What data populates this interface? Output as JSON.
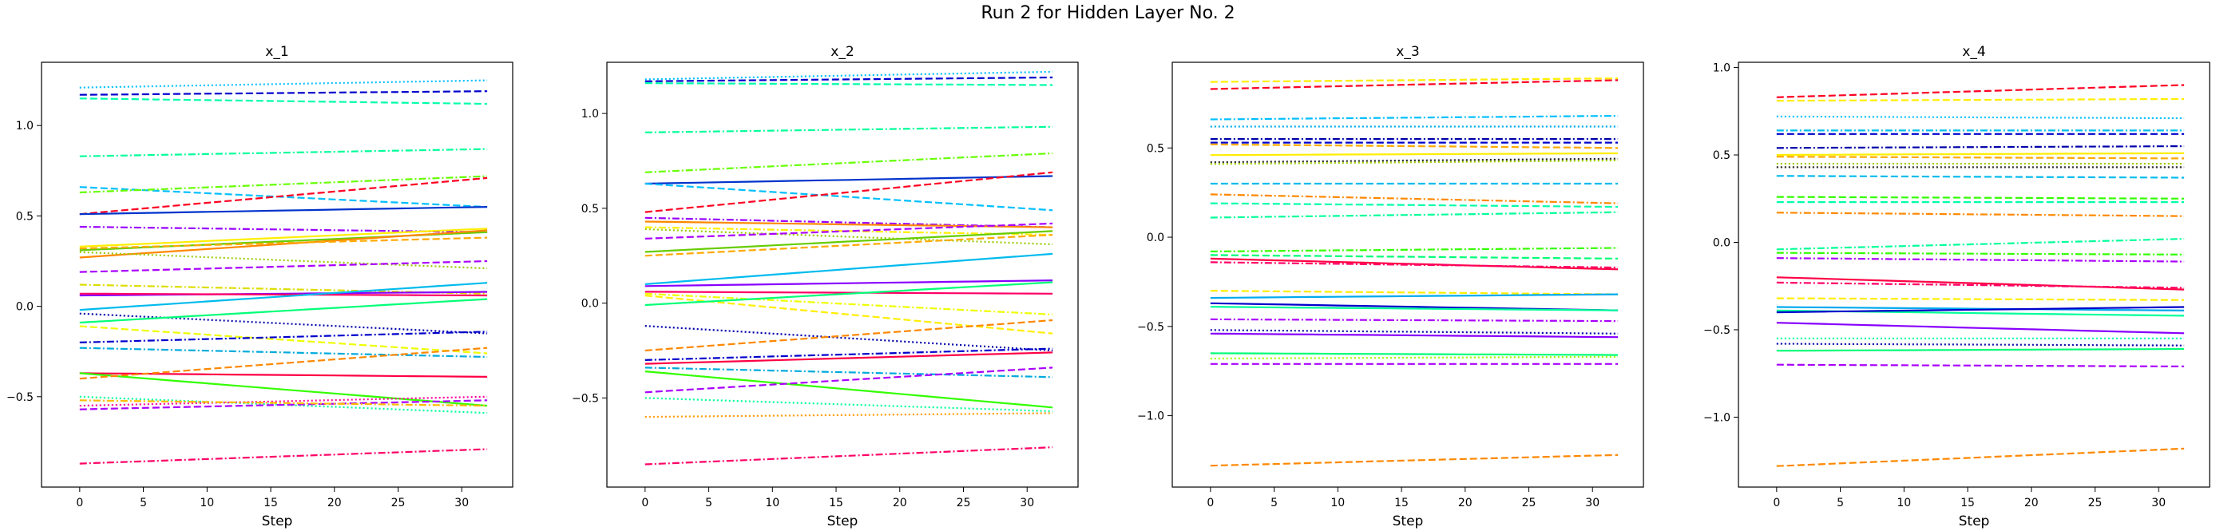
{
  "figure": {
    "title": "Run 2 for Hidden Layer No. 2"
  },
  "chart_data": [
    {
      "type": "line",
      "title": "x_1",
      "xlabel": "Step",
      "xlim": [
        -3,
        34
      ],
      "ylim": [
        -1.0,
        1.35
      ],
      "xticks": [
        0,
        5,
        10,
        15,
        20,
        25,
        30
      ],
      "yticks": [
        -0.5,
        0.0,
        0.5,
        1.0
      ],
      "ytick_labels": [
        "−0.5",
        "0.0",
        "0.5",
        "1.0"
      ],
      "x_range": [
        0,
        32
      ],
      "lines": [
        {
          "start": 1.21,
          "end": 1.25,
          "color": "#00bfff",
          "dash": "dot"
        },
        {
          "start": 1.17,
          "end": 1.19,
          "color": "#0000cd",
          "dash": "dash"
        },
        {
          "start": 1.15,
          "end": 1.12,
          "color": "#00ffaa",
          "dash": "dash"
        },
        {
          "start": 0.83,
          "end": 0.87,
          "color": "#00ff99",
          "dash": "dashdot"
        },
        {
          "start": 0.66,
          "end": 0.55,
          "color": "#00bfff",
          "dash": "dash"
        },
        {
          "start": 0.63,
          "end": 0.72,
          "color": "#66ff00",
          "dash": "dashdot"
        },
        {
          "start": 0.51,
          "end": 0.71,
          "color": "#ff0022",
          "dash": "dash"
        },
        {
          "start": 0.51,
          "end": 0.55,
          "color": "#0033cc",
          "dash": "solid"
        },
        {
          "start": 0.44,
          "end": 0.41,
          "color": "#9900ff",
          "dash": "dashdot"
        },
        {
          "start": 0.33,
          "end": 0.43,
          "color": "#ffee00",
          "dash": "solid"
        },
        {
          "start": 0.31,
          "end": 0.41,
          "color": "#66cc00",
          "dash": "solid"
        },
        {
          "start": 0.27,
          "end": 0.42,
          "color": "#ff8800",
          "dash": "solid"
        },
        {
          "start": 0.32,
          "end": 0.38,
          "color": "#ffaa00",
          "dash": "dash"
        },
        {
          "start": 0.3,
          "end": 0.21,
          "color": "#99cc00",
          "dash": "dot"
        },
        {
          "start": 0.19,
          "end": 0.25,
          "color": "#aa00ff",
          "dash": "dash"
        },
        {
          "start": 0.12,
          "end": 0.07,
          "color": "#dddd00",
          "dash": "dashdot"
        },
        {
          "start": 0.06,
          "end": 0.08,
          "color": "#8800ff",
          "dash": "solid"
        },
        {
          "start": 0.07,
          "end": 0.06,
          "color": "#ff0066",
          "dash": "solid"
        },
        {
          "start": -0.02,
          "end": 0.13,
          "color": "#00bbee",
          "dash": "solid"
        },
        {
          "start": -0.04,
          "end": -0.15,
          "color": "#0000aa",
          "dash": "dot"
        },
        {
          "start": -0.09,
          "end": 0.04,
          "color": "#00ff77",
          "dash": "solid"
        },
        {
          "start": -0.11,
          "end": -0.26,
          "color": "#eeff00",
          "dash": "dash"
        },
        {
          "start": -0.2,
          "end": -0.14,
          "color": "#0000cc",
          "dash": "dashdot"
        },
        {
          "start": -0.23,
          "end": -0.28,
          "color": "#00aadd",
          "dash": "dashdot"
        },
        {
          "start": -0.37,
          "end": -0.39,
          "color": "#ff0044",
          "dash": "solid"
        },
        {
          "start": -0.37,
          "end": -0.55,
          "color": "#33ff00",
          "dash": "solid"
        },
        {
          "start": -0.4,
          "end": -0.23,
          "color": "#ff8800",
          "dash": "dash"
        },
        {
          "start": -0.5,
          "end": -0.59,
          "color": "#00ff99",
          "dash": "dot"
        },
        {
          "start": -0.55,
          "end": -0.5,
          "color": "#ff0099",
          "dash": "dot"
        },
        {
          "start": -0.57,
          "end": -0.52,
          "color": "#aa00ff",
          "dash": "dash"
        },
        {
          "start": -0.52,
          "end": -0.55,
          "color": "#ffbb00",
          "dash": "dashdot"
        },
        {
          "start": -0.87,
          "end": -0.79,
          "color": "#ff0066",
          "dash": "dashdot"
        }
      ]
    },
    {
      "type": "line",
      "title": "x_2",
      "xlabel": "Step",
      "xlim": [
        -3,
        34
      ],
      "ylim": [
        -0.97,
        1.27
      ],
      "xticks": [
        0,
        5,
        10,
        15,
        20,
        25,
        30
      ],
      "yticks": [
        -0.5,
        0.0,
        0.5,
        1.0
      ],
      "ytick_labels": [
        "−0.5",
        "0.0",
        "0.5",
        "1.0"
      ],
      "x_range": [
        0,
        32
      ],
      "lines": [
        {
          "start": 1.18,
          "end": 1.22,
          "color": "#00bfff",
          "dash": "dot"
        },
        {
          "start": 1.17,
          "end": 1.19,
          "color": "#0000cd",
          "dash": "dash"
        },
        {
          "start": 1.16,
          "end": 1.15,
          "color": "#00ffaa",
          "dash": "dash"
        },
        {
          "start": 0.9,
          "end": 0.93,
          "color": "#00ff99",
          "dash": "dashdot"
        },
        {
          "start": 0.69,
          "end": 0.79,
          "color": "#66ff00",
          "dash": "dashdot"
        },
        {
          "start": 0.63,
          "end": 0.67,
          "color": "#0033cc",
          "dash": "solid"
        },
        {
          "start": 0.63,
          "end": 0.49,
          "color": "#00bfff",
          "dash": "dash"
        },
        {
          "start": 0.48,
          "end": 0.69,
          "color": "#ff0022",
          "dash": "dash"
        },
        {
          "start": 0.45,
          "end": 0.4,
          "color": "#9900ff",
          "dash": "dashdot"
        },
        {
          "start": 0.43,
          "end": 0.4,
          "color": "#ff8800",
          "dash": "solid"
        },
        {
          "start": 0.4,
          "end": 0.36,
          "color": "#ffee00",
          "dash": "dashdot"
        },
        {
          "start": 0.39,
          "end": 0.31,
          "color": "#99cc00",
          "dash": "dot"
        },
        {
          "start": 0.34,
          "end": 0.42,
          "color": "#aa00ff",
          "dash": "dash"
        },
        {
          "start": 0.27,
          "end": 0.38,
          "color": "#66cc00",
          "dash": "solid"
        },
        {
          "start": 0.25,
          "end": 0.36,
          "color": "#ffaa00",
          "dash": "dash"
        },
        {
          "start": 0.1,
          "end": 0.26,
          "color": "#00bbee",
          "dash": "solid"
        },
        {
          "start": 0.09,
          "end": 0.12,
          "color": "#8800ff",
          "dash": "solid"
        },
        {
          "start": 0.06,
          "end": 0.05,
          "color": "#ff0066",
          "dash": "solid"
        },
        {
          "start": 0.05,
          "end": -0.06,
          "color": "#eeff00",
          "dash": "dashdot"
        },
        {
          "start": 0.04,
          "end": -0.16,
          "color": "#ffee00",
          "dash": "dash"
        },
        {
          "start": -0.01,
          "end": 0.11,
          "color": "#00ff77",
          "dash": "solid"
        },
        {
          "start": -0.12,
          "end": -0.25,
          "color": "#0000aa",
          "dash": "dot"
        },
        {
          "start": -0.25,
          "end": -0.09,
          "color": "#ff8800",
          "dash": "dash"
        },
        {
          "start": -0.3,
          "end": -0.24,
          "color": "#0000cc",
          "dash": "dashdot"
        },
        {
          "start": -0.32,
          "end": -0.26,
          "color": "#ff0044",
          "dash": "solid"
        },
        {
          "start": -0.34,
          "end": -0.39,
          "color": "#00aadd",
          "dash": "dashdot"
        },
        {
          "start": -0.36,
          "end": -0.55,
          "color": "#33ff00",
          "dash": "solid"
        },
        {
          "start": -0.47,
          "end": -0.34,
          "color": "#aa00ff",
          "dash": "dash"
        },
        {
          "start": -0.5,
          "end": -0.57,
          "color": "#00ff99",
          "dash": "dot"
        },
        {
          "start": -0.6,
          "end": -0.58,
          "color": "#ff9900",
          "dash": "dot"
        },
        {
          "start": -0.85,
          "end": -0.76,
          "color": "#ff0066",
          "dash": "dashdot"
        }
      ]
    },
    {
      "type": "line",
      "title": "x_3",
      "xlabel": "Step",
      "xlim": [
        -3,
        34
      ],
      "ylim": [
        -1.4,
        0.98
      ],
      "xticks": [
        0,
        5,
        10,
        15,
        20,
        25,
        30
      ],
      "yticks": [
        -1.0,
        -0.5,
        0.0,
        0.5
      ],
      "ytick_labels": [
        "−1.0",
        "−0.5",
        "0.0",
        "0.5"
      ],
      "x_range": [
        0,
        32
      ],
      "lines": [
        {
          "start": 0.87,
          "end": 0.89,
          "color": "#ffee00",
          "dash": "dash"
        },
        {
          "start": 0.83,
          "end": 0.88,
          "color": "#ff0022",
          "dash": "dash"
        },
        {
          "start": 0.66,
          "end": 0.68,
          "color": "#00bfff",
          "dash": "dashdot"
        },
        {
          "start": 0.62,
          "end": 0.62,
          "color": "#00aaee",
          "dash": "dot"
        },
        {
          "start": 0.55,
          "end": 0.55,
          "color": "#0000aa",
          "dash": "dashdot"
        },
        {
          "start": 0.53,
          "end": 0.53,
          "color": "#0000cd",
          "dash": "dash"
        },
        {
          "start": 0.52,
          "end": 0.5,
          "color": "#ffaa00",
          "dash": "dash"
        },
        {
          "start": 0.46,
          "end": 0.47,
          "color": "#ffee00",
          "dash": "solid"
        },
        {
          "start": 0.42,
          "end": 0.44,
          "color": "#222222",
          "dash": "dot"
        },
        {
          "start": 0.41,
          "end": 0.43,
          "color": "#99cc00",
          "dash": "dot"
        },
        {
          "start": 0.3,
          "end": 0.3,
          "color": "#00bbee",
          "dash": "dash"
        },
        {
          "start": 0.24,
          "end": 0.19,
          "color": "#ff8800",
          "dash": "dashdot"
        },
        {
          "start": 0.19,
          "end": 0.17,
          "color": "#00ffaa",
          "dash": "dash"
        },
        {
          "start": 0.11,
          "end": 0.14,
          "color": "#00ff99",
          "dash": "dashdot"
        },
        {
          "start": -0.08,
          "end": -0.06,
          "color": "#33ff00",
          "dash": "dashdot"
        },
        {
          "start": -0.1,
          "end": -0.12,
          "color": "#00ff77",
          "dash": "dash"
        },
        {
          "start": -0.12,
          "end": -0.18,
          "color": "#ff0044",
          "dash": "solid"
        },
        {
          "start": -0.14,
          "end": -0.17,
          "color": "#ff0066",
          "dash": "dashdot"
        },
        {
          "start": -0.3,
          "end": -0.32,
          "color": "#ffee00",
          "dash": "dash"
        },
        {
          "start": -0.34,
          "end": -0.32,
          "color": "#00aaee",
          "dash": "solid"
        },
        {
          "start": -0.37,
          "end": -0.41,
          "color": "#0000cc",
          "dash": "solid"
        },
        {
          "start": -0.39,
          "end": -0.41,
          "color": "#00ff99",
          "dash": "solid"
        },
        {
          "start": -0.46,
          "end": -0.47,
          "color": "#aa00ff",
          "dash": "dashdot"
        },
        {
          "start": -0.52,
          "end": -0.54,
          "color": "#0000aa",
          "dash": "dot"
        },
        {
          "start": -0.54,
          "end": -0.56,
          "color": "#8800ff",
          "dash": "solid"
        },
        {
          "start": -0.65,
          "end": -0.66,
          "color": "#00ff77",
          "dash": "solid"
        },
        {
          "start": -0.68,
          "end": -0.67,
          "color": "#99ff00",
          "dash": "dot"
        },
        {
          "start": -0.71,
          "end": -0.71,
          "color": "#aa00ff",
          "dash": "dash"
        },
        {
          "start": -1.28,
          "end": -1.22,
          "color": "#ff8800",
          "dash": "dash"
        }
      ]
    },
    {
      "type": "line",
      "title": "x_4",
      "xlabel": "Step",
      "xlim": [
        -3,
        34
      ],
      "ylim": [
        -1.4,
        1.03
      ],
      "xticks": [
        0,
        5,
        10,
        15,
        20,
        25,
        30
      ],
      "yticks": [
        -1.0,
        -0.5,
        0.0,
        0.5,
        1.0
      ],
      "ytick_labels": [
        "−1.0",
        "−0.5",
        "0.0",
        "0.5",
        "1.0"
      ],
      "x_range": [
        0,
        32
      ],
      "lines": [
        {
          "start": 0.83,
          "end": 0.9,
          "color": "#ff0022",
          "dash": "dash"
        },
        {
          "start": 0.81,
          "end": 0.82,
          "color": "#ffee00",
          "dash": "dash"
        },
        {
          "start": 0.72,
          "end": 0.71,
          "color": "#00bfff",
          "dash": "dot"
        },
        {
          "start": 0.64,
          "end": 0.64,
          "color": "#00bbee",
          "dash": "dashdot"
        },
        {
          "start": 0.62,
          "end": 0.62,
          "color": "#0000cd",
          "dash": "dash"
        },
        {
          "start": 0.54,
          "end": 0.55,
          "color": "#0000aa",
          "dash": "dashdot"
        },
        {
          "start": 0.5,
          "end": 0.51,
          "color": "#ffee00",
          "dash": "solid"
        },
        {
          "start": 0.49,
          "end": 0.48,
          "color": "#ffaa00",
          "dash": "dash"
        },
        {
          "start": 0.45,
          "end": 0.45,
          "color": "#99cc00",
          "dash": "dot"
        },
        {
          "start": 0.43,
          "end": 0.43,
          "color": "#222222",
          "dash": "dot"
        },
        {
          "start": 0.38,
          "end": 0.37,
          "color": "#00bbee",
          "dash": "dash"
        },
        {
          "start": 0.26,
          "end": 0.25,
          "color": "#33ff00",
          "dash": "dash"
        },
        {
          "start": 0.23,
          "end": 0.23,
          "color": "#00ffaa",
          "dash": "dash"
        },
        {
          "start": 0.17,
          "end": 0.15,
          "color": "#ff8800",
          "dash": "dashdot"
        },
        {
          "start": -0.04,
          "end": 0.02,
          "color": "#00ff99",
          "dash": "dashdot"
        },
        {
          "start": -0.06,
          "end": -0.07,
          "color": "#33ff00",
          "dash": "dashdot"
        },
        {
          "start": -0.09,
          "end": -0.11,
          "color": "#aa00ff",
          "dash": "dashdot"
        },
        {
          "start": -0.2,
          "end": -0.27,
          "color": "#ff0044",
          "dash": "solid"
        },
        {
          "start": -0.23,
          "end": -0.26,
          "color": "#ff0066",
          "dash": "dashdot"
        },
        {
          "start": -0.32,
          "end": -0.33,
          "color": "#ffee00",
          "dash": "dash"
        },
        {
          "start": -0.37,
          "end": -0.39,
          "color": "#00aaee",
          "dash": "solid"
        },
        {
          "start": -0.39,
          "end": -0.42,
          "color": "#00ff99",
          "dash": "solid"
        },
        {
          "start": -0.4,
          "end": -0.37,
          "color": "#0000cc",
          "dash": "solid"
        },
        {
          "start": -0.46,
          "end": -0.52,
          "color": "#8800ff",
          "dash": "solid"
        },
        {
          "start": -0.55,
          "end": -0.55,
          "color": "#00ffaa",
          "dash": "dot"
        },
        {
          "start": -0.58,
          "end": -0.59,
          "color": "#0000aa",
          "dash": "dot"
        },
        {
          "start": -0.62,
          "end": -0.61,
          "color": "#00ff77",
          "dash": "solid"
        },
        {
          "start": -0.7,
          "end": -0.71,
          "color": "#aa00ff",
          "dash": "dash"
        },
        {
          "start": -1.28,
          "end": -1.18,
          "color": "#ff8800",
          "dash": "dash"
        }
      ]
    }
  ]
}
